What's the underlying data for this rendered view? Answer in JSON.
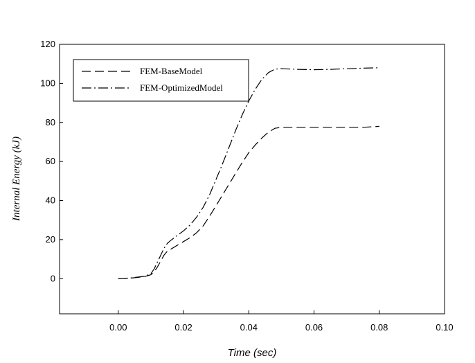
{
  "chart_data": {
    "type": "line",
    "xlabel": "Time (sec)",
    "ylabel": "Internal Energy (kJ)",
    "xlim": [
      -0.018,
      0.1
    ],
    "ylim": [
      -18,
      120
    ],
    "x_ticks": [
      "0.00",
      "0.02",
      "0.04",
      "0.06",
      "0.08",
      "0.10"
    ],
    "y_ticks": [
      "0",
      "20",
      "40",
      "60",
      "80",
      "100",
      "120"
    ],
    "legend_position": "top-left",
    "grid": false,
    "series": [
      {
        "name": "FEM-BaseModel",
        "style": "dashed",
        "x": [
          0.0,
          0.004,
          0.008,
          0.01,
          0.011,
          0.012,
          0.013,
          0.014,
          0.015,
          0.016,
          0.018,
          0.02,
          0.022,
          0.024,
          0.026,
          0.028,
          0.03,
          0.032,
          0.034,
          0.036,
          0.038,
          0.04,
          0.042,
          0.044,
          0.046,
          0.048,
          0.05,
          0.055,
          0.06,
          0.065,
          0.07,
          0.075,
          0.08
        ],
        "y": [
          0,
          0.3,
          1.0,
          2.0,
          3.5,
          6.0,
          9.0,
          12.0,
          14.0,
          15.0,
          17.0,
          19.0,
          21.0,
          23.5,
          27.0,
          32.0,
          37.5,
          43.0,
          48.5,
          54.0,
          59.5,
          64.5,
          68.5,
          72.0,
          75.0,
          77.0,
          77.5,
          77.5,
          77.5,
          77.5,
          77.5,
          77.5,
          78.0
        ]
      },
      {
        "name": "FEM-OptimizedModel",
        "style": "dash-dot",
        "x": [
          0.0,
          0.004,
          0.008,
          0.01,
          0.011,
          0.012,
          0.013,
          0.014,
          0.015,
          0.016,
          0.018,
          0.02,
          0.022,
          0.024,
          0.026,
          0.028,
          0.03,
          0.032,
          0.034,
          0.036,
          0.038,
          0.04,
          0.042,
          0.044,
          0.046,
          0.048,
          0.05,
          0.055,
          0.06,
          0.065,
          0.07,
          0.075,
          0.08
        ],
        "y": [
          0,
          0.4,
          1.2,
          2.5,
          5.0,
          8.5,
          12.0,
          15.5,
          18.0,
          19.5,
          22.0,
          24.5,
          27.5,
          31.5,
          36.5,
          43.0,
          51.0,
          59.0,
          67.5,
          76.0,
          84.0,
          91.0,
          97.0,
          102.0,
          105.5,
          107.3,
          107.5,
          107.2,
          107.0,
          107.2,
          107.5,
          107.8,
          108.0
        ]
      }
    ]
  }
}
